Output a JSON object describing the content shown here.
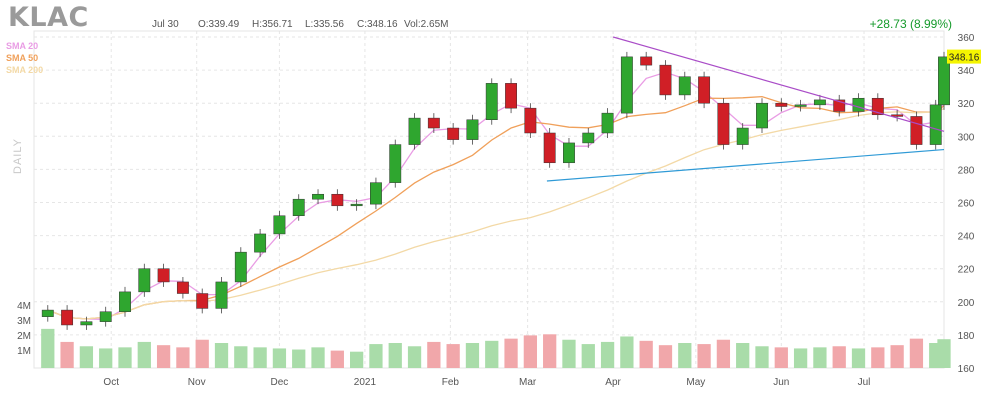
{
  "header": {
    "ticker": "KLAC",
    "date": "Jul 30",
    "open": "O:339.49",
    "high": "H:356.71",
    "low": "L:335.56",
    "close": "C:348.16",
    "volume": "Vol:2.65M",
    "change": "+28.73 (8.99%)",
    "change_color": "#159a2b"
  },
  "indicators": [
    {
      "label": "SMA 20",
      "color": "#e99ce4"
    },
    {
      "label": "SMA 50",
      "color": "#f0a05a"
    },
    {
      "label": "SMA 200",
      "color": "#f3d9a6"
    }
  ],
  "daily_label": "DAILY",
  "chart_data": {
    "type": "candlestick",
    "title": "KLAC",
    "timeframe": "daily",
    "ylim": [
      160,
      360
    ],
    "y_ticks": [
      160,
      180,
      200,
      220,
      240,
      260,
      280,
      300,
      320,
      340,
      360
    ],
    "x_ticks": [
      "Oct",
      "Nov",
      "Dec",
      "2021",
      "Feb",
      "Mar",
      "Apr",
      "May",
      "Jun",
      "Jul"
    ],
    "volume_ticks": [
      "1M",
      "2M",
      "3M",
      "4M"
    ],
    "last_price": "348.16",
    "last_price_color": "#f5f500",
    "up_color": "#2fa62f",
    "down_color": "#d01f26",
    "volume_up_color": "#a9dca9",
    "volume_down_color": "#f1a7aa",
    "close_series": [
      {
        "date": "2020-09-08",
        "close": 195
      },
      {
        "date": "2020-09-15",
        "close": 186
      },
      {
        "date": "2020-09-22",
        "close": 188
      },
      {
        "date": "2020-09-29",
        "close": 194
      },
      {
        "date": "2020-10-06",
        "close": 206
      },
      {
        "date": "2020-10-13",
        "close": 220
      },
      {
        "date": "2020-10-20",
        "close": 212
      },
      {
        "date": "2020-10-27",
        "close": 205
      },
      {
        "date": "2020-11-03",
        "close": 196
      },
      {
        "date": "2020-11-10",
        "close": 212
      },
      {
        "date": "2020-11-17",
        "close": 230
      },
      {
        "date": "2020-11-24",
        "close": 241
      },
      {
        "date": "2020-12-01",
        "close": 252
      },
      {
        "date": "2020-12-08",
        "close": 262
      },
      {
        "date": "2020-12-15",
        "close": 265
      },
      {
        "date": "2020-12-22",
        "close": 258
      },
      {
        "date": "2020-12-29",
        "close": 259
      },
      {
        "date": "2021-01-05",
        "close": 272
      },
      {
        "date": "2021-01-12",
        "close": 295
      },
      {
        "date": "2021-01-19",
        "close": 311
      },
      {
        "date": "2021-01-26",
        "close": 305
      },
      {
        "date": "2021-02-02",
        "close": 298
      },
      {
        "date": "2021-02-09",
        "close": 310
      },
      {
        "date": "2021-02-16",
        "close": 332
      },
      {
        "date": "2021-02-23",
        "close": 317
      },
      {
        "date": "2021-03-02",
        "close": 302
      },
      {
        "date": "2021-03-09",
        "close": 284
      },
      {
        "date": "2021-03-16",
        "close": 296
      },
      {
        "date": "2021-03-23",
        "close": 302
      },
      {
        "date": "2021-03-30",
        "close": 314
      },
      {
        "date": "2021-04-06",
        "close": 348
      },
      {
        "date": "2021-04-13",
        "close": 343
      },
      {
        "date": "2021-04-20",
        "close": 325
      },
      {
        "date": "2021-04-27",
        "close": 336
      },
      {
        "date": "2021-05-04",
        "close": 320
      },
      {
        "date": "2021-05-11",
        "close": 295
      },
      {
        "date": "2021-05-18",
        "close": 305
      },
      {
        "date": "2021-05-25",
        "close": 320
      },
      {
        "date": "2021-06-01",
        "close": 318
      },
      {
        "date": "2021-06-08",
        "close": 319
      },
      {
        "date": "2021-06-15",
        "close": 322
      },
      {
        "date": "2021-06-22",
        "close": 315
      },
      {
        "date": "2021-06-29",
        "close": 323
      },
      {
        "date": "2021-07-06",
        "close": 313
      },
      {
        "date": "2021-07-13",
        "close": 312
      },
      {
        "date": "2021-07-20",
        "close": 295
      },
      {
        "date": "2021-07-27",
        "close": 319
      },
      {
        "date": "2021-07-30",
        "close": 348
      }
    ],
    "volume_series_millions": [
      3.6,
      2.4,
      2.0,
      1.8,
      1.9,
      2.4,
      2.1,
      1.9,
      2.6,
      2.3,
      2.0,
      1.9,
      1.8,
      1.7,
      1.9,
      1.6,
      1.5,
      2.2,
      2.3,
      2.0,
      2.4,
      2.2,
      2.3,
      2.5,
      2.7,
      3.0,
      3.1,
      2.6,
      2.2,
      2.4,
      2.9,
      2.5,
      2.1,
      2.3,
      2.2,
      2.6,
      2.3,
      2.0,
      1.9,
      1.8,
      1.9,
      2.0,
      1.8,
      1.9,
      2.1,
      2.7,
      2.3,
      2.65
    ],
    "trendlines": [
      {
        "name": "resistance",
        "color": "#a94cc7",
        "start": {
          "date": "2021-04-01",
          "value": 360
        },
        "end": {
          "date": "2021-07-30",
          "value": 303
        }
      },
      {
        "name": "support",
        "color": "#2f9ad6",
        "start": {
          "date": "2021-03-08",
          "value": 273
        },
        "end": {
          "date": "2021-07-30",
          "value": 292
        }
      }
    ]
  }
}
